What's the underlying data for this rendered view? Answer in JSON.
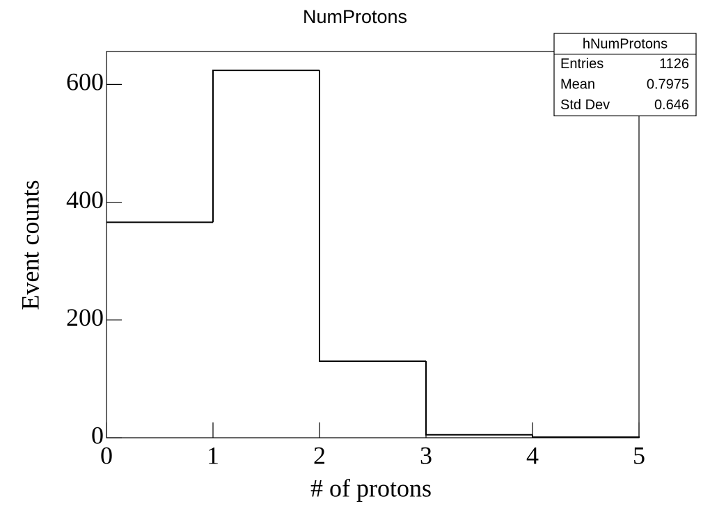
{
  "chart_data": {
    "type": "histogram",
    "title": "NumProtons",
    "xlabel": "# of protons",
    "ylabel": "Event counts",
    "bins": [
      0,
      1,
      2,
      3,
      4,
      5
    ],
    "counts": [
      366,
      624,
      130,
      5,
      1
    ],
    "color": "#000000",
    "xlim": [
      0,
      5
    ],
    "xticks": [
      0,
      1,
      2,
      3,
      4,
      5
    ],
    "ylim": [
      0,
      656
    ],
    "yticks": [
      0,
      200,
      400,
      600
    ],
    "stats": {
      "title": "hNumProtons",
      "rows": [
        {
          "label": "Entries",
          "value": 1126
        },
        {
          "label": "Mean",
          "value": 0.7975
        },
        {
          "label": "Std Dev",
          "value": 0.646
        }
      ]
    }
  }
}
